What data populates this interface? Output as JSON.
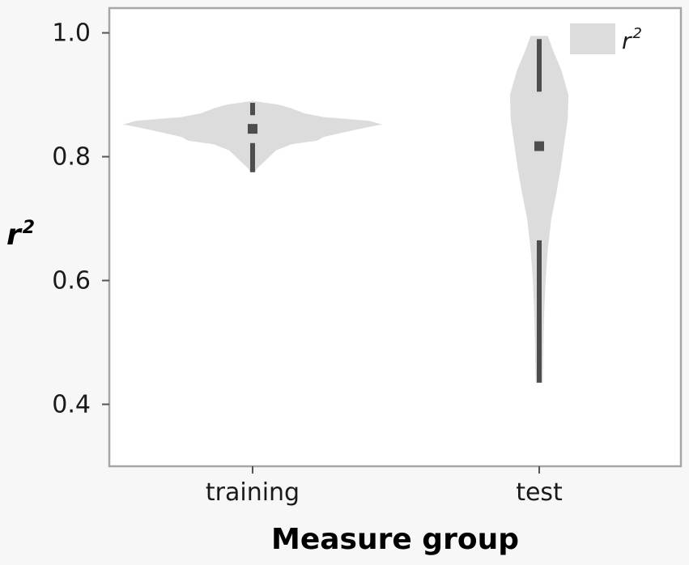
{
  "chart_data": {
    "type": "violin",
    "xlabel": "Measure group",
    "ylabel": {
      "base": "r",
      "sup": "2"
    },
    "ylim": [
      0.3,
      1.04
    ],
    "yticks": [
      "0.4",
      "0.6",
      "0.8",
      "1.0"
    ],
    "ytick_values": [
      0.4,
      0.6,
      0.8,
      1.0
    ],
    "categories": [
      "training",
      "test"
    ],
    "legend": {
      "base": "r",
      "sup": "2",
      "position": "top-right"
    },
    "series_name": "r²",
    "violin_color": "#dcdcdc",
    "box_color": "#4d4d4d",
    "violins": [
      {
        "category": "training",
        "median": 0.845,
        "q1": 0.822,
        "q3": 0.867,
        "whisker_low": 0.775,
        "whisker_high": 0.887,
        "min": 0.775,
        "max": 0.89,
        "density": [
          [
            0.775,
            0.02
          ],
          [
            0.78,
            0.03
          ],
          [
            0.79,
            0.08
          ],
          [
            0.8,
            0.13
          ],
          [
            0.81,
            0.18
          ],
          [
            0.82,
            0.3
          ],
          [
            0.826,
            0.5
          ],
          [
            0.832,
            0.55
          ],
          [
            0.84,
            0.72
          ],
          [
            0.846,
            0.85
          ],
          [
            0.852,
            1.0
          ],
          [
            0.858,
            0.9
          ],
          [
            0.864,
            0.55
          ],
          [
            0.87,
            0.4
          ],
          [
            0.878,
            0.3
          ],
          [
            0.884,
            0.2
          ],
          [
            0.89,
            0.0
          ]
        ]
      },
      {
        "category": "test",
        "median": 0.817,
        "q1": 0.665,
        "q3": 0.905,
        "whisker_low": 0.435,
        "whisker_high": 0.99,
        "min": 0.435,
        "max": 0.995,
        "density": [
          [
            0.435,
            0.1
          ],
          [
            0.5,
            0.12
          ],
          [
            0.55,
            0.14
          ],
          [
            0.6,
            0.18
          ],
          [
            0.65,
            0.24
          ],
          [
            0.7,
            0.34
          ],
          [
            0.74,
            0.48
          ],
          [
            0.78,
            0.6
          ],
          [
            0.82,
            0.7
          ],
          [
            0.86,
            0.8
          ],
          [
            0.9,
            0.82
          ],
          [
            0.94,
            0.62
          ],
          [
            0.97,
            0.4
          ],
          [
            0.995,
            0.24
          ]
        ]
      }
    ]
  }
}
